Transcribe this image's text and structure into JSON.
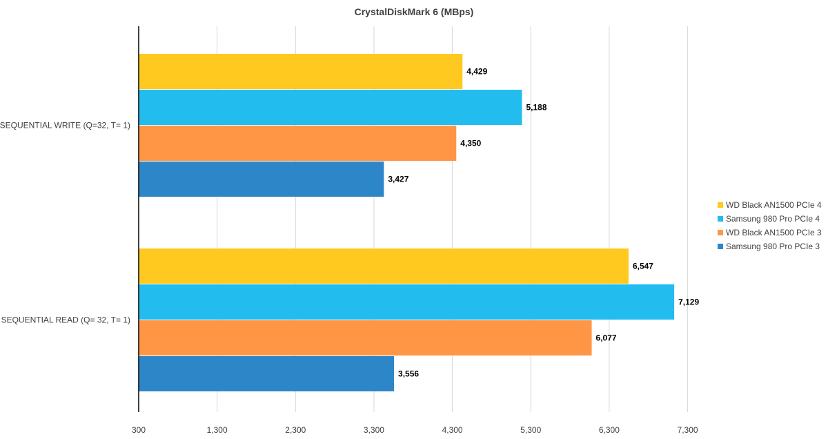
{
  "chart_data": {
    "type": "bar",
    "orientation": "horizontal",
    "title": "CrystalDiskMark 6 (MBps)",
    "xlabel": "",
    "ylabel": "",
    "xlim": [
      300,
      7700
    ],
    "x_ticks": [
      300,
      1300,
      2300,
      3300,
      4300,
      5300,
      6300,
      7300
    ],
    "x_tick_labels": [
      "300",
      "1,300",
      "2,300",
      "3,300",
      "4,300",
      "5,300",
      "6,300",
      "7,300"
    ],
    "grid": true,
    "legend_position": "right",
    "categories": [
      "SEQUENTIAL WRITE (Q=32, T= 1)",
      "SEQUENTIAL READ (Q= 32, T= 1)"
    ],
    "series": [
      {
        "name": "WD Black AN1500 PCIe 4",
        "color": "#FFC91F",
        "values": [
          4429,
          6547
        ],
        "labels": [
          "4,429",
          "6,547"
        ]
      },
      {
        "name": "Samsung 980 Pro PCIe 4",
        "color": "#23BCEF",
        "values": [
          5188,
          7129
        ],
        "labels": [
          "5,188",
          "7,129"
        ]
      },
      {
        "name": "WD Black AN1500 PCIe 3",
        "color": "#FF9645",
        "values": [
          4350,
          6077
        ],
        "labels": [
          "4,350",
          "6,077"
        ]
      },
      {
        "name": "Samsung 980 Pro PCIe 3",
        "color": "#2D86C8",
        "values": [
          3427,
          3556
        ],
        "labels": [
          "3,427",
          "3,556"
        ]
      }
    ]
  }
}
